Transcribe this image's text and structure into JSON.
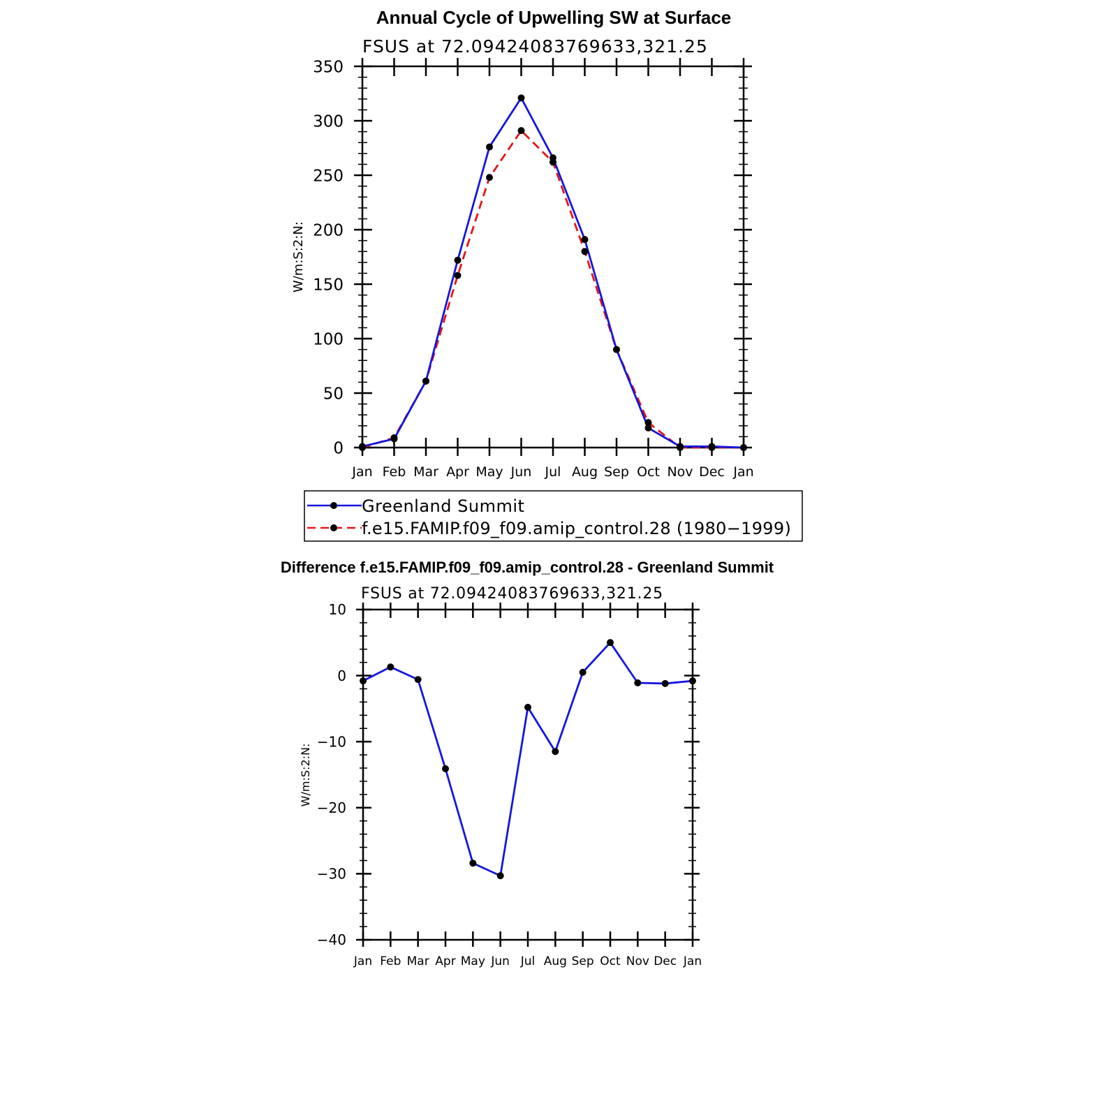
{
  "chart_data": [
    {
      "type": "line",
      "title": "Annual Cycle of Upwelling SW at Surface",
      "subtitle": "FSUS at 72.09424083769633,321.25",
      "xlabel": "",
      "ylabel": "W/m:S:2:N:",
      "categories": [
        "Jan",
        "Feb",
        "Mar",
        "Apr",
        "May",
        "Jun",
        "Jul",
        "Aug",
        "Sep",
        "Oct",
        "Nov",
        "Dec",
        "Jan"
      ],
      "ylim": [
        0,
        350
      ],
      "yticks": [
        0,
        50,
        100,
        150,
        200,
        250,
        300,
        350
      ],
      "series": [
        {
          "name": "Greenland Summit",
          "color": "#1515e0",
          "style": "solid",
          "values": [
            1,
            8,
            61,
            172,
            276,
            321,
            266,
            191,
            90,
            18,
            1,
            1,
            0
          ]
        },
        {
          "name": "f.e15.FAMIP.f09_f09.amip_control.28 (1980−1999)",
          "color": "#e51515",
          "style": "dashed",
          "values": [
            0,
            9,
            61,
            158,
            248,
            291,
            262,
            180,
            90,
            23,
            0,
            0,
            0
          ]
        }
      ],
      "legend": "bottom"
    },
    {
      "type": "line",
      "title": "Difference f.e15.FAMIP.f09_f09.amip_control.28 - Greenland Summit",
      "subtitle": "FSUS at 72.09424083769633,321.25",
      "xlabel": "",
      "ylabel": "W/m:S:2:N:",
      "categories": [
        "Jan",
        "Feb",
        "Mar",
        "Apr",
        "May",
        "Jun",
        "Jul",
        "Aug",
        "Sep",
        "Oct",
        "Nov",
        "Dec",
        "Jan"
      ],
      "ylim": [
        -40,
        10
      ],
      "yticks": [
        -40,
        -30,
        -20,
        -10,
        0,
        10
      ],
      "series": [
        {
          "name": "Difference",
          "color": "#1515e0",
          "style": "solid",
          "values": [
            -0.8,
            1.3,
            -0.6,
            -14.1,
            -28.4,
            -30.3,
            -4.8,
            -11.5,
            0.5,
            5.0,
            -1.1,
            -1.2,
            -0.8
          ]
        }
      ]
    }
  ]
}
